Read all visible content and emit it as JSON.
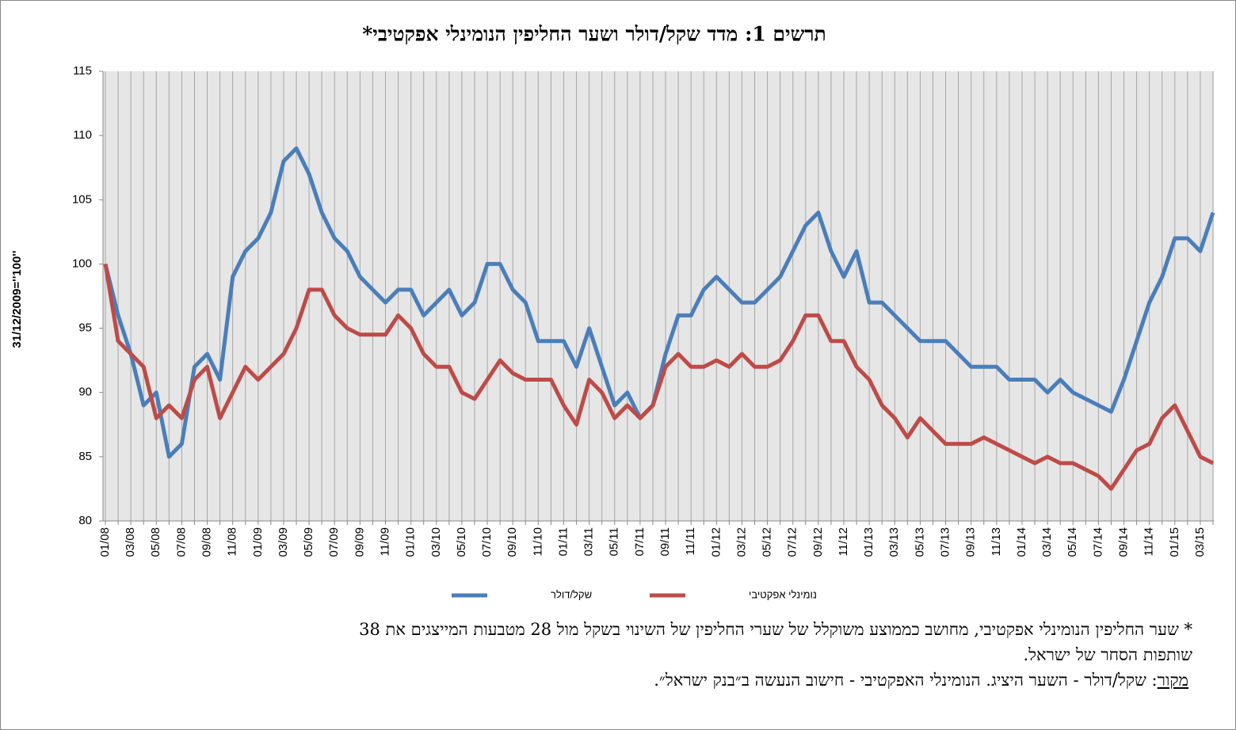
{
  "chart_data": {
    "type": "line",
    "title": "תרשים 1: מדד שקל/דולר ושער החליפין הנומינלי אפקטיבי*",
    "y_label": "31/12/2009=''100''",
    "categories": [
      "01/08",
      null,
      "03/08",
      null,
      "05/08",
      null,
      "07/08",
      null,
      "09/08",
      null,
      "11/08",
      null,
      "01/09",
      null,
      "03/09",
      null,
      "05/09",
      null,
      "07/09",
      null,
      "09/09",
      null,
      "11/09",
      null,
      "01/10",
      null,
      "03/10",
      null,
      "05/10",
      null,
      "07/10",
      null,
      "09/10",
      null,
      "11/10",
      null,
      "01/11",
      null,
      "03/11",
      null,
      "05/11",
      null,
      "07/11",
      null,
      "09/11",
      null,
      "11/11",
      null,
      "01/12",
      null,
      "03/12",
      null,
      "05/12",
      null,
      "07/12",
      null,
      "09/12",
      null,
      "11/12",
      null,
      "01/13",
      null,
      "03/13",
      null,
      "05/13",
      null,
      "07/13",
      null,
      "09/13",
      null,
      "11/13",
      null,
      "01/14",
      null,
      "03/14",
      null,
      "05/14",
      null,
      "07/14",
      null,
      "09/14",
      null,
      "11/14",
      null,
      "01/15",
      null,
      "03/15",
      null
    ],
    "series": [
      {
        "name": "שקל/דולר",
        "color": "#4a7ebb",
        "values": [
          100,
          96,
          93,
          89,
          90,
          85,
          86,
          92,
          93,
          91,
          99,
          101,
          102,
          104,
          108,
          109,
          107,
          104,
          102,
          101,
          99,
          98,
          97,
          98,
          98,
          96,
          97,
          98,
          96,
          97,
          100,
          100,
          98,
          97,
          94,
          94,
          94,
          92,
          95,
          92,
          89,
          90,
          88,
          89,
          93,
          96,
          96,
          98,
          99,
          98,
          97,
          97,
          98,
          99,
          101,
          103,
          104,
          101,
          99,
          101,
          97,
          97,
          96,
          95,
          94,
          94,
          94,
          93,
          92,
          92,
          92,
          91,
          91,
          91,
          90,
          91,
          90,
          89.5,
          89,
          88.5,
          91,
          94,
          97,
          99,
          102,
          102,
          101,
          104
        ]
      },
      {
        "name": "נומינלי אפקטיבי",
        "color": "#be4b48",
        "values": [
          100,
          94,
          93,
          92,
          88,
          89,
          88,
          91,
          92,
          88,
          90,
          92,
          91,
          92,
          93,
          95,
          98,
          98,
          96,
          95,
          94.5,
          94.5,
          94.5,
          96,
          95,
          93,
          92,
          92,
          90,
          89.5,
          91,
          92.5,
          91.5,
          91,
          91,
          91,
          89,
          87.5,
          91,
          90,
          88,
          89,
          88,
          89,
          92,
          93,
          92,
          92,
          92.5,
          92,
          93,
          92,
          92,
          92.5,
          94,
          96,
          96,
          94,
          94,
          92,
          91,
          89,
          88,
          86.5,
          88,
          87,
          86,
          86,
          86,
          86.5,
          86,
          85.5,
          85,
          84.5,
          85,
          84.5,
          84.5,
          84,
          83.5,
          82.5,
          84,
          85.5,
          86,
          88,
          89,
          87,
          85,
          84.5
        ]
      }
    ],
    "ylim": [
      80,
      115
    ],
    "yticks": [
      80,
      85,
      90,
      95,
      100,
      105,
      110,
      115
    ],
    "grid": "vertical",
    "legend": "bottom",
    "notes": [
      "* שער החליפין הנומינלי אפקטיבי, מחושב כממוצע משוקלל של שערי החליפין של השינוי בשקל מול 28 מטבעות  המייצגים את 38",
      "שותפות הסחר של ישראל."
    ],
    "source_label": "מקור",
    "source_text": ": שקל/דולר - השער היציג. הנומינלי האפקטיבי - חישוב הנעשה ב״בנק ישראל״."
  }
}
